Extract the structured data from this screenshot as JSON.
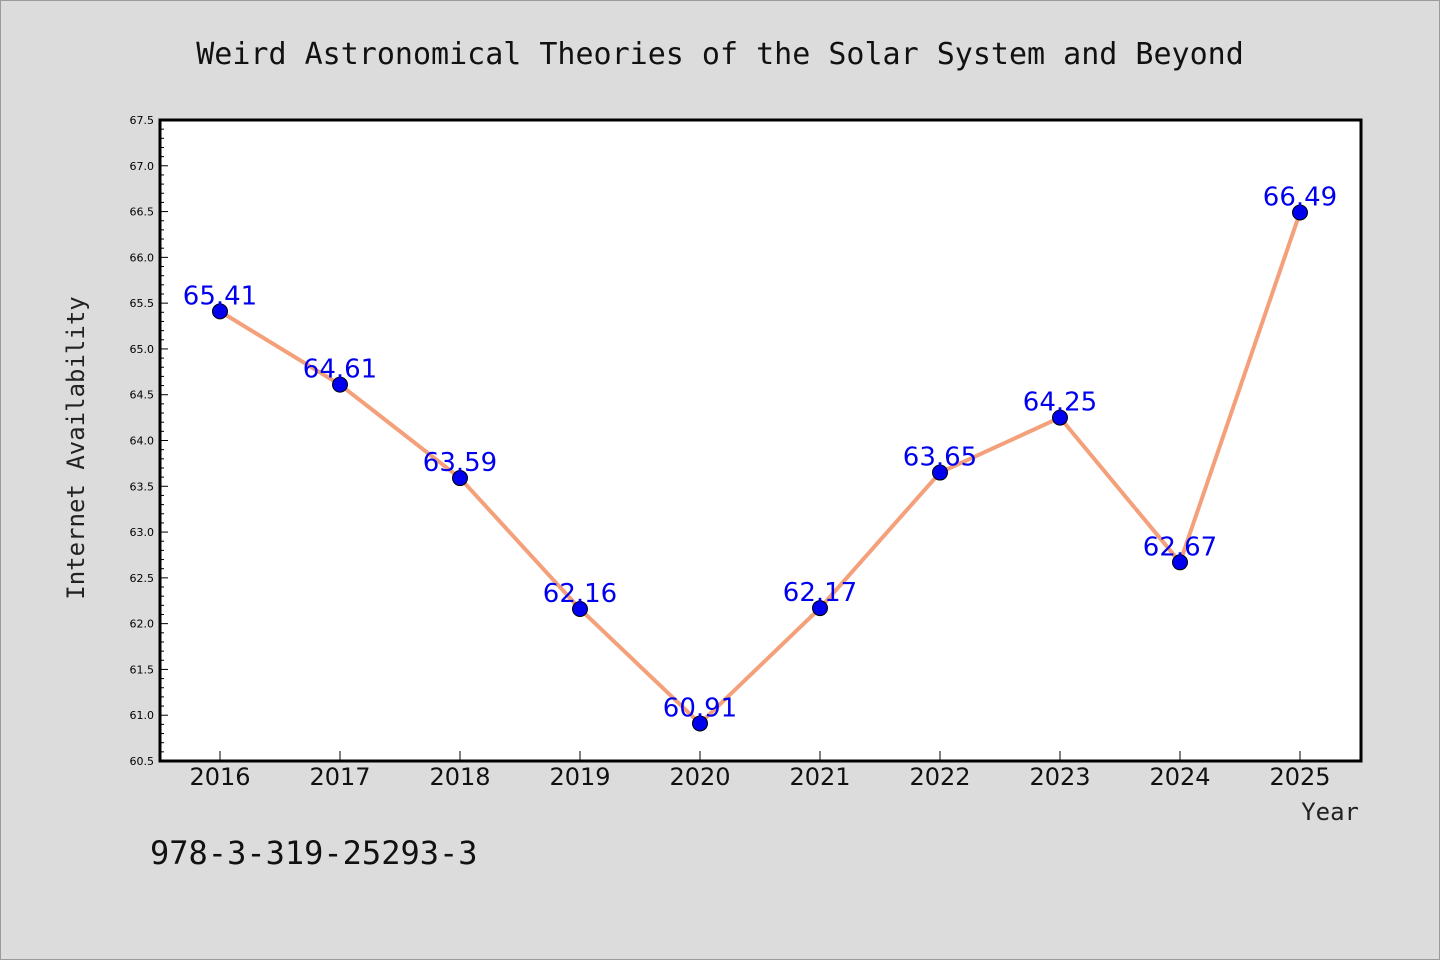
{
  "chart_data": {
    "type": "line",
    "title": "Weird Astronomical Theories of the Solar System and Beyond",
    "xlabel": "Year",
    "ylabel": "Internet Availability",
    "categories": [
      "2016",
      "2017",
      "2018",
      "2019",
      "2020",
      "2021",
      "2022",
      "2023",
      "2024",
      "2025"
    ],
    "series": [
      {
        "values": [
          65.41,
          64.61,
          63.59,
          62.16,
          60.91,
          62.17,
          63.65,
          64.25,
          62.67,
          66.49
        ],
        "labels": [
          "65.41",
          "64.61",
          "63.59",
          "62.16",
          "60.91",
          "62.17",
          "63.65",
          "64.25",
          "62.67",
          "66.49"
        ],
        "line_color": "#f4a07a",
        "marker_color": "#0000ee"
      }
    ],
    "ylim": [
      60.5,
      67.5
    ],
    "yticks": [
      "60.5",
      "61.0",
      "61.5",
      "62.0",
      "62.5",
      "63.0",
      "63.5",
      "64.0",
      "64.5",
      "65.0",
      "65.5",
      "66.0",
      "66.5",
      "67.0",
      "67.5"
    ],
    "grid": false,
    "label_color": "#0000ee"
  },
  "footnote": "978-3-319-25293-3"
}
